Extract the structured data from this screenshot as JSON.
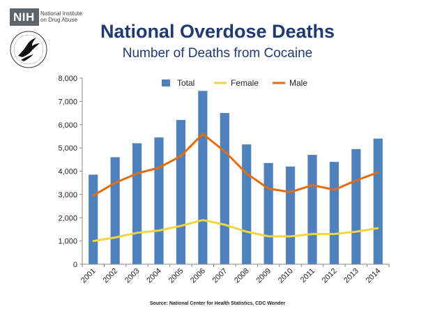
{
  "header": {
    "title": "National Overdose Deaths",
    "subtitle": "Number of Deaths from Cocaine",
    "nih_label": "NIH",
    "institute_line1": "National Institute",
    "institute_line2": "on Drug Abuse"
  },
  "footer": {
    "source": "Source: National Center for Health Statistics, CDC Wonder"
  },
  "colors": {
    "bar": "#4f81bd",
    "female": "#f2d53c",
    "male": "#e46c0a",
    "title": "#1f3a6e"
  },
  "chart_data": {
    "type": "bar",
    "categories": [
      "2001",
      "2002",
      "2003",
      "2004",
      "2005",
      "2006",
      "2007",
      "2008",
      "2009",
      "2010",
      "2011",
      "2012",
      "2013",
      "2014"
    ],
    "series": [
      {
        "name": "Total",
        "kind": "bar",
        "values": [
          3850,
          4600,
          5200,
          5450,
          6200,
          7450,
          6500,
          5150,
          4350,
          4200,
          4700,
          4400,
          4950,
          5400
        ]
      },
      {
        "name": "Female",
        "kind": "line",
        "values": [
          1000,
          1150,
          1350,
          1450,
          1650,
          1900,
          1700,
          1400,
          1200,
          1200,
          1300,
          1300,
          1400,
          1550
        ]
      },
      {
        "name": "Male",
        "kind": "line",
        "values": [
          2950,
          3500,
          3900,
          4150,
          4650,
          5600,
          4850,
          3900,
          3250,
          3100,
          3400,
          3200,
          3600,
          3950
        ]
      }
    ],
    "yticks": [
      "0",
      "1,000",
      "2,000",
      "3,000",
      "4,000",
      "5,000",
      "6,000",
      "7,000",
      "8,000"
    ],
    "ylim": [
      0,
      8000
    ],
    "legend_position": "top",
    "title": "National Overdose Deaths",
    "subtitle": "Number of Deaths from Cocaine"
  }
}
